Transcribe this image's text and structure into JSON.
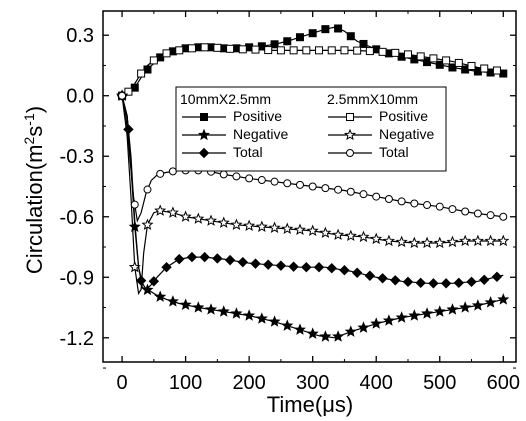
{
  "chart_data": {
    "type": "line",
    "title": "",
    "xlabel": "Time(μs)",
    "ylabel": "Circulation(m²s⁻¹)",
    "ylabel_base": "Circulation(m",
    "ylabel_sup1": "2",
    "ylabel_mid": "s",
    "ylabel_sup2": "-1",
    "ylabel_end": ")",
    "xlim": [
      -30,
      620
    ],
    "ylim": [
      -1.32,
      0.42
    ],
    "xticks": [
      0,
      100,
      200,
      300,
      400,
      500,
      600
    ],
    "yticks": [
      0.3,
      0.0,
      -0.3,
      -0.6,
      -0.9,
      -1.2
    ],
    "xtick_labels": [
      "0",
      "100",
      "200",
      "300",
      "400",
      "500",
      "600"
    ],
    "ytick_labels": [
      "0.3",
      "0.0",
      "-0.3",
      "-0.6",
      "-0.9",
      "-1.2"
    ],
    "grid": false,
    "legend_position": "upper-center",
    "legend_groups": [
      "10mmX2.5mm",
      "2.5mmX10mm"
    ],
    "legend_rows": [
      {
        "label_left": "Positive",
        "label_right": "Positive"
      },
      {
        "label_left": "Negative",
        "label_right": "Negative"
      },
      {
        "label_left": "Total",
        "label_right": "Total"
      }
    ],
    "series": [
      {
        "name": "Positive",
        "group": "10mmX2.5mm",
        "marker": "square-filled",
        "every": 4,
        "x": [
          0,
          10,
          20,
          30,
          40,
          60,
          80,
          100,
          120,
          140,
          160,
          180,
          200,
          220,
          240,
          260,
          280,
          300,
          320,
          335,
          350,
          370,
          400,
          430,
          460,
          490,
          520,
          560,
          600
        ],
        "y": [
          0.0,
          0.01,
          0.04,
          0.09,
          0.13,
          0.19,
          0.22,
          0.235,
          0.24,
          0.24,
          0.235,
          0.235,
          0.24,
          0.245,
          0.255,
          0.27,
          0.29,
          0.31,
          0.33,
          0.34,
          0.32,
          0.27,
          0.23,
          0.2,
          0.18,
          0.16,
          0.14,
          0.12,
          0.11
        ]
      },
      {
        "name": "Positive",
        "group": "2.5mmX10mm",
        "marker": "square-open",
        "every": 4,
        "x": [
          0,
          10,
          20,
          30,
          40,
          60,
          80,
          100,
          120,
          140,
          160,
          180,
          200,
          240,
          280,
          320,
          360,
          400,
          440,
          480,
          520,
          560,
          600
        ],
        "y": [
          0.0,
          0.02,
          0.06,
          0.11,
          0.15,
          0.2,
          0.22,
          0.23,
          0.24,
          0.24,
          0.235,
          0.23,
          0.23,
          0.225,
          0.225,
          0.225,
          0.225,
          0.22,
          0.21,
          0.19,
          0.17,
          0.14,
          0.12
        ]
      },
      {
        "name": "Negative",
        "group": "10mmX2.5mm",
        "marker": "star-filled",
        "every": 3,
        "x": [
          0,
          8,
          14,
          20,
          26,
          32,
          38,
          45,
          55,
          70,
          90,
          120,
          160,
          200,
          240,
          280,
          310,
          335,
          360,
          400,
          440,
          480,
          520,
          560,
          600
        ],
        "y": [
          0.0,
          -0.1,
          -0.35,
          -0.65,
          -0.85,
          -0.93,
          -0.96,
          -0.97,
          -0.99,
          -1.01,
          -1.03,
          -1.05,
          -1.07,
          -1.09,
          -1.12,
          -1.16,
          -1.19,
          -1.2,
          -1.17,
          -1.13,
          -1.1,
          -1.08,
          -1.06,
          -1.04,
          -1.01
        ]
      },
      {
        "name": "Negative",
        "group": "2.5mmX10mm",
        "marker": "star-open",
        "every": 3,
        "x": [
          0,
          8,
          14,
          20,
          26,
          30,
          34,
          40,
          50,
          60,
          80,
          100,
          140,
          180,
          220,
          260,
          300,
          340,
          380,
          420,
          460,
          500,
          540,
          580,
          600
        ],
        "y": [
          0.0,
          -0.2,
          -0.5,
          -0.85,
          -0.98,
          -0.96,
          -0.78,
          -0.64,
          -0.58,
          -0.57,
          -0.58,
          -0.6,
          -0.62,
          -0.64,
          -0.65,
          -0.66,
          -0.67,
          -0.69,
          -0.7,
          -0.72,
          -0.73,
          -0.73,
          -0.72,
          -0.72,
          -0.72
        ]
      },
      {
        "name": "Total",
        "group": "10mmX2.5mm",
        "marker": "diamond-filled",
        "every": 3,
        "x": [
          0,
          8,
          14,
          20,
          26,
          32,
          38,
          45,
          55,
          70,
          90,
          110,
          130,
          160,
          200,
          240,
          280,
          320,
          360,
          400,
          440,
          480,
          520,
          560,
          600
        ],
        "y": [
          0.0,
          -0.1,
          -0.3,
          -0.62,
          -0.85,
          -0.95,
          -0.96,
          -0.94,
          -0.9,
          -0.85,
          -0.81,
          -0.8,
          -0.8,
          -0.81,
          -0.83,
          -0.84,
          -0.85,
          -0.85,
          -0.87,
          -0.9,
          -0.92,
          -0.93,
          -0.93,
          -0.92,
          -0.89
        ]
      },
      {
        "name": "Total",
        "group": "2.5mmX10mm",
        "marker": "circle-open",
        "every": 4,
        "x": [
          0,
          6,
          12,
          18,
          24,
          30,
          38,
          46,
          56,
          70,
          90,
          110,
          130,
          160,
          200,
          250,
          300,
          350,
          400,
          450,
          500,
          550,
          600
        ],
        "y": [
          0.0,
          -0.1,
          -0.3,
          -0.5,
          -0.62,
          -0.58,
          -0.48,
          -0.42,
          -0.39,
          -0.38,
          -0.37,
          -0.37,
          -0.37,
          -0.39,
          -0.41,
          -0.43,
          -0.45,
          -0.47,
          -0.5,
          -0.53,
          -0.55,
          -0.58,
          -0.6
        ]
      }
    ]
  }
}
